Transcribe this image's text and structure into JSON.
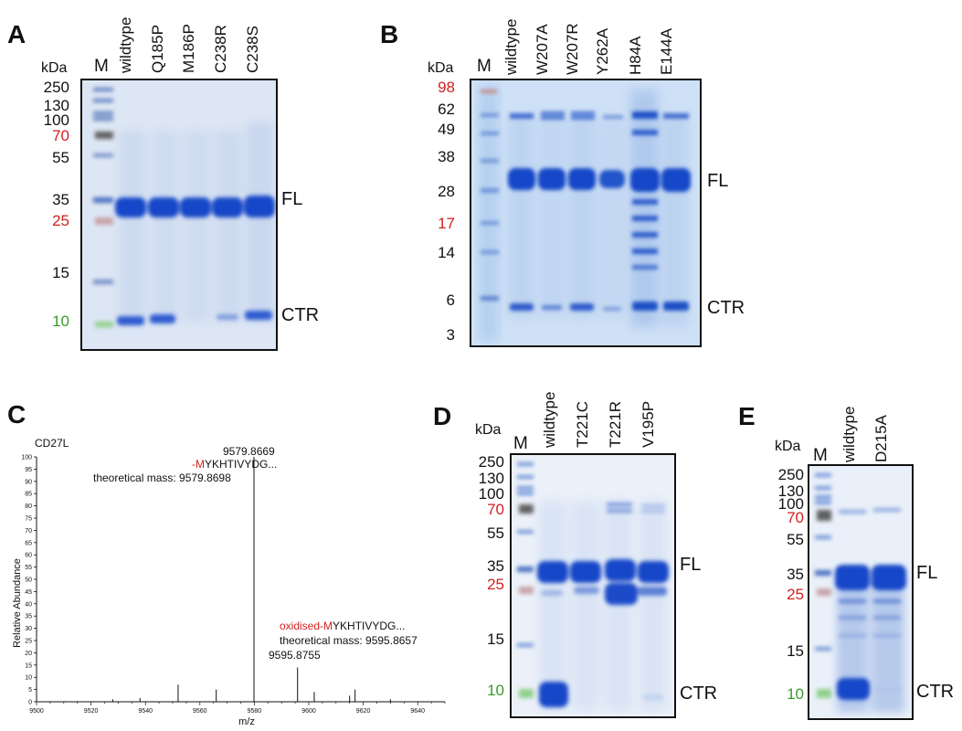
{
  "panels": {
    "A": {
      "letter": "A",
      "kda": "kDa",
      "marker_label": "M",
      "lanes": [
        "wildtype",
        "Q185P",
        "M186P",
        "C238R",
        "C238S"
      ],
      "markers": [
        {
          "label": "250",
          "color": "#111111"
        },
        {
          "label": "130",
          "color": "#111111"
        },
        {
          "label": "100",
          "color": "#111111"
        },
        {
          "label": "70",
          "color": "#d21f1f"
        },
        {
          "label": "55",
          "color": "#111111"
        },
        {
          "label": "35",
          "color": "#111111"
        },
        {
          "label": "25",
          "color": "#d21f1f"
        },
        {
          "label": "15",
          "color": "#111111"
        },
        {
          "label": "10",
          "color": "#3a9a2a"
        }
      ],
      "fl": "FL",
      "ctr": "CTR"
    },
    "B": {
      "letter": "B",
      "kda": "kDa",
      "marker_label": "M",
      "lanes": [
        "wildtype",
        "W207A",
        "W207R",
        "Y262A",
        "H84A",
        "E144A"
      ],
      "markers": [
        {
          "label": "98",
          "color": "#d21f1f"
        },
        {
          "label": "62",
          "color": "#111111"
        },
        {
          "label": "49",
          "color": "#111111"
        },
        {
          "label": "38",
          "color": "#111111"
        },
        {
          "label": "28",
          "color": "#111111"
        },
        {
          "label": "17",
          "color": "#d21f1f"
        },
        {
          "label": "14",
          "color": "#111111"
        },
        {
          "label": "6",
          "color": "#111111"
        },
        {
          "label": "3",
          "color": "#111111"
        }
      ],
      "fl": "FL",
      "ctr": "CTR"
    },
    "C": {
      "letter": "C",
      "chart_data": {
        "type": "bar",
        "title": "CD27L",
        "xlabel": "m/z",
        "ylabel": "Relative Abundance",
        "xlim": [
          9500,
          9650
        ],
        "ylim": [
          0,
          100
        ],
        "x_ticks": [
          9500,
          9520,
          9540,
          9560,
          9580,
          9600,
          9620,
          9640
        ],
        "y_ticks": [
          0,
          5,
          10,
          15,
          20,
          25,
          30,
          35,
          40,
          45,
          50,
          55,
          60,
          65,
          70,
          75,
          80,
          85,
          90,
          95,
          100
        ],
        "peaks": [
          {
            "mz": 9528,
            "intensity": 1
          },
          {
            "mz": 9538,
            "intensity": 1.5
          },
          {
            "mz": 9552,
            "intensity": 7
          },
          {
            "mz": 9566,
            "intensity": 5
          },
          {
            "mz": 9579.8669,
            "intensity": 100
          },
          {
            "mz": 9595.8755,
            "intensity": 14
          },
          {
            "mz": 9602,
            "intensity": 4
          },
          {
            "mz": 9615,
            "intensity": 2.5
          },
          {
            "mz": 9617,
            "intensity": 5
          },
          {
            "mz": 9630,
            "intensity": 1
          }
        ],
        "annotations": [
          {
            "mz_label": "9579.8669",
            "prefix": "-M",
            "seq": "YKHTIVYDG...",
            "mass": "theoretical mass: 9579.8698"
          },
          {
            "mz_label": "9595.8755",
            "prefix": "oxidised-M",
            "seq": "YKHTIVYDG...",
            "mass": "theoretical mass: 9595.8657"
          }
        ]
      }
    },
    "D": {
      "letter": "D",
      "kda": "kDa",
      "marker_label": "M",
      "lanes": [
        "wildtype",
        "T221C",
        "T221R",
        "V195P"
      ],
      "markers": [
        {
          "label": "250",
          "color": "#111111"
        },
        {
          "label": "130",
          "color": "#111111"
        },
        {
          "label": "100",
          "color": "#111111"
        },
        {
          "label": "70",
          "color": "#d21f1f"
        },
        {
          "label": "55",
          "color": "#111111"
        },
        {
          "label": "35",
          "color": "#111111"
        },
        {
          "label": "25",
          "color": "#d21f1f"
        },
        {
          "label": "15",
          "color": "#111111"
        },
        {
          "label": "10",
          "color": "#3a9a2a"
        }
      ],
      "fl": "FL",
      "ctr": "CTR"
    },
    "E": {
      "letter": "E",
      "kda": "kDa",
      "marker_label": "M",
      "lanes": [
        "wildtype",
        "D215A"
      ],
      "markers": [
        {
          "label": "250",
          "color": "#111111"
        },
        {
          "label": "130",
          "color": "#111111"
        },
        {
          "label": "100",
          "color": "#111111"
        },
        {
          "label": "70",
          "color": "#d21f1f"
        },
        {
          "label": "55",
          "color": "#111111"
        },
        {
          "label": "35",
          "color": "#111111"
        },
        {
          "label": "25",
          "color": "#d21f1f"
        },
        {
          "label": "15",
          "color": "#111111"
        },
        {
          "label": "10",
          "color": "#3a9a2a"
        }
      ],
      "fl": "FL",
      "ctr": "CTR"
    }
  }
}
